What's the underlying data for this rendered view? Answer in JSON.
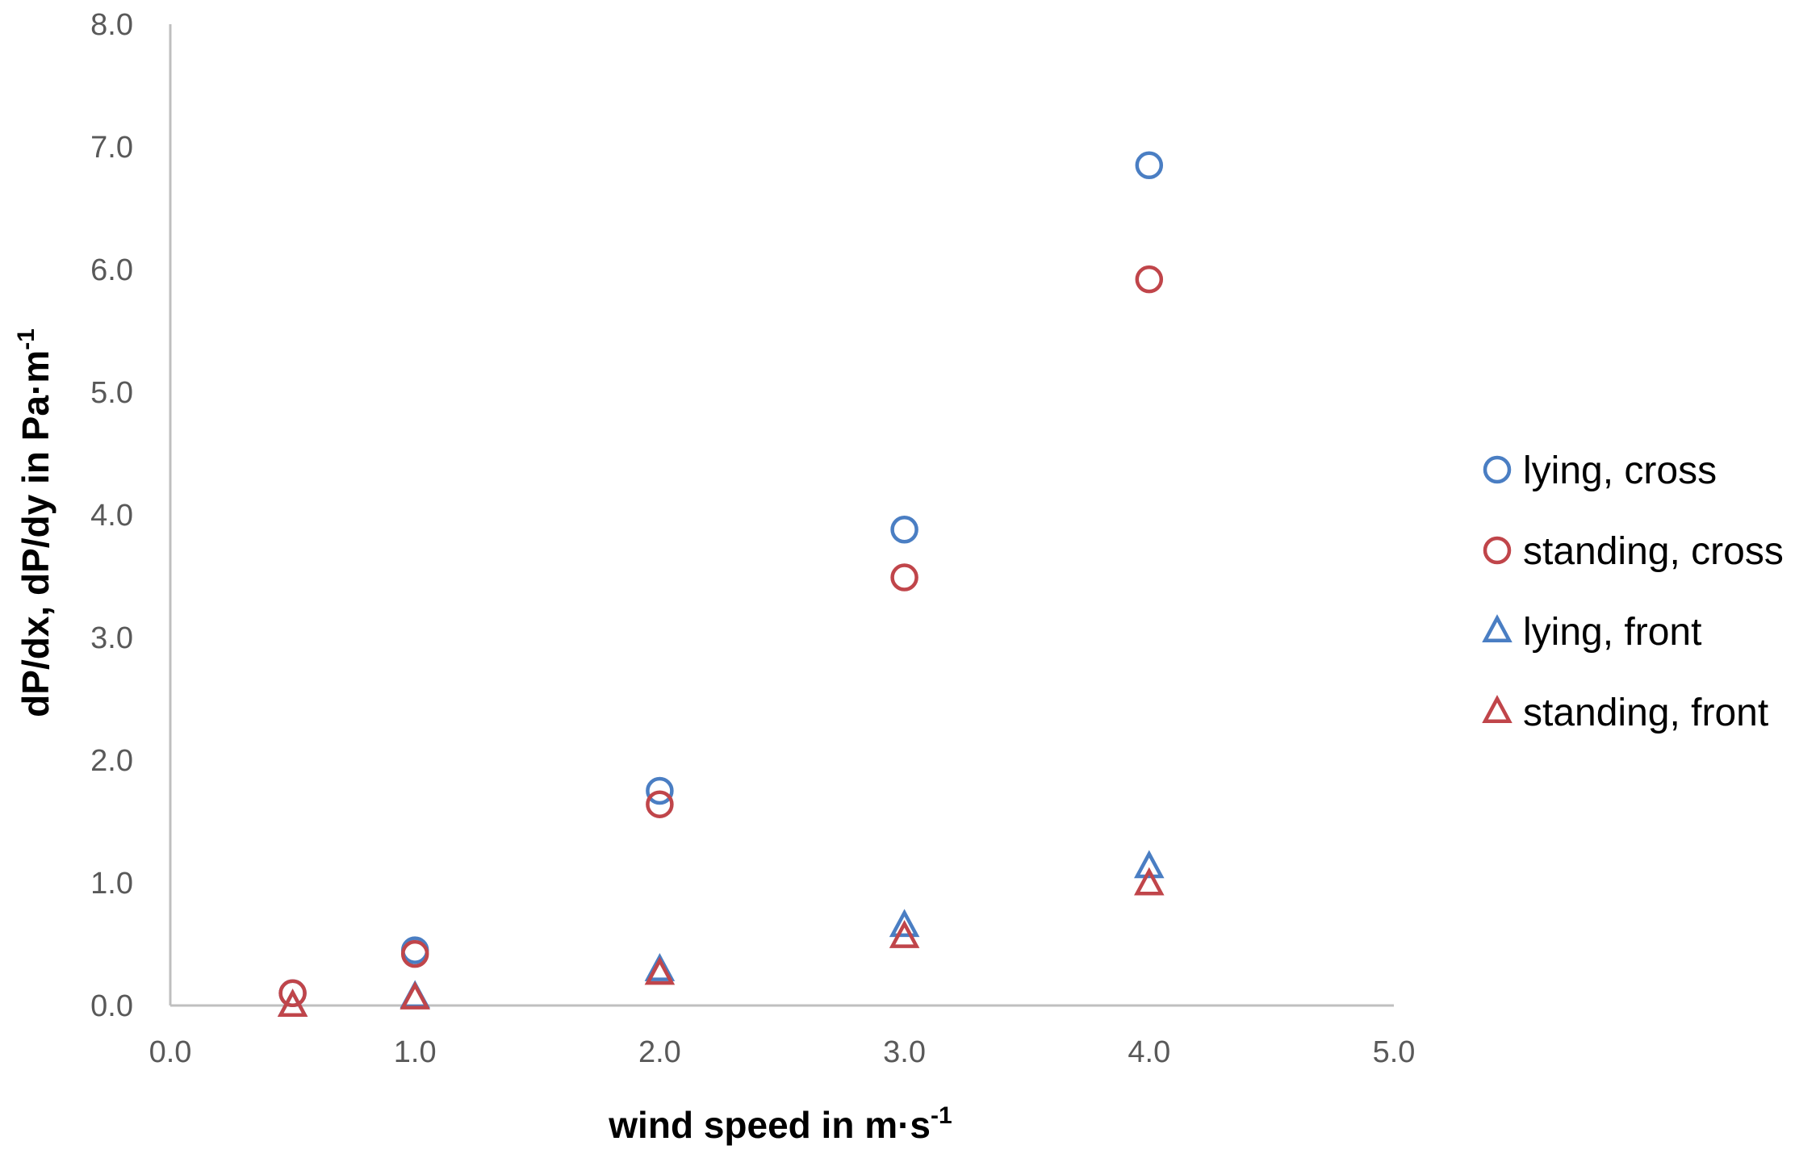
{
  "chart_data": {
    "type": "scatter",
    "title": "",
    "xlabel": {
      "main": "wind speed in m·s",
      "sup": "-1"
    },
    "ylabel": {
      "main": "dP/dx, dP/dy in Pa·m",
      "sup": "-1"
    },
    "xlim": [
      0,
      5
    ],
    "ylim": [
      0,
      8
    ],
    "x_ticks": [
      "0.0",
      "1.0",
      "2.0",
      "3.0",
      "4.0",
      "5.0"
    ],
    "y_ticks": [
      "0.0",
      "1.0",
      "2.0",
      "3.0",
      "4.0",
      "5.0",
      "6.0",
      "7.0",
      "8.0"
    ],
    "grid": false,
    "legend_position": "right",
    "series": [
      {
        "name": "lying, cross",
        "marker": "circle",
        "color": "#4A7EC3",
        "points": [
          [
            0.5,
            0.1
          ],
          [
            1.0,
            0.45
          ],
          [
            2.0,
            1.75
          ],
          [
            3.0,
            3.88
          ],
          [
            4.0,
            6.85
          ]
        ]
      },
      {
        "name": "standing, cross",
        "marker": "circle",
        "color": "#C0454A",
        "points": [
          [
            0.5,
            0.1
          ],
          [
            1.0,
            0.42
          ],
          [
            2.0,
            1.64
          ],
          [
            3.0,
            3.49
          ],
          [
            4.0,
            5.92
          ]
        ]
      },
      {
        "name": "lying, front",
        "marker": "triangle",
        "color": "#4A7EC3",
        "points": [
          [
            0.5,
            0.0
          ],
          [
            1.0,
            0.07
          ],
          [
            2.0,
            0.29
          ],
          [
            3.0,
            0.65
          ],
          [
            4.0,
            1.13
          ]
        ]
      },
      {
        "name": "standing, front",
        "marker": "triangle",
        "color": "#C0454A",
        "points": [
          [
            0.5,
            0.0
          ],
          [
            1.0,
            0.06
          ],
          [
            2.0,
            0.26
          ],
          [
            3.0,
            0.56
          ],
          [
            4.0,
            0.99
          ]
        ]
      }
    ]
  },
  "colors": {
    "axis": "#BFBFBF",
    "tick_text": "#595959"
  }
}
